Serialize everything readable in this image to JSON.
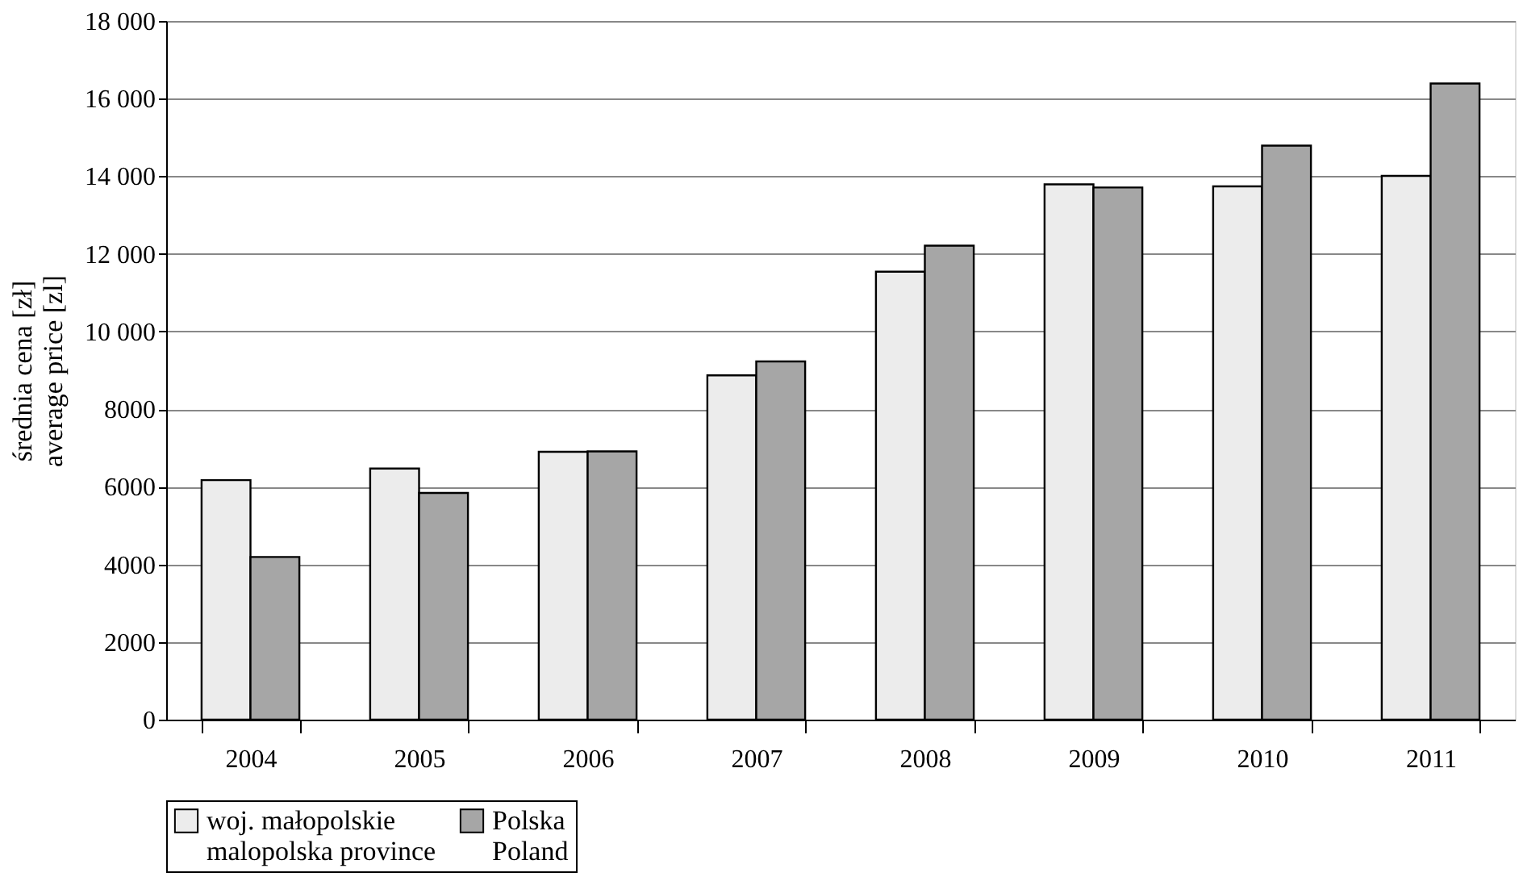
{
  "chart_data": {
    "type": "bar",
    "ylabel": "średnia cena [zł]\naverage price [zl]",
    "categories": [
      "2004",
      "2005",
      "2006",
      "2007",
      "2008",
      "2009",
      "2010",
      "2011"
    ],
    "series": [
      {
        "name": "woj. małopolskie\nmalopolska province",
        "color": "#ececec",
        "values": [
          6170,
          6470,
          6900,
          8870,
          11540,
          13790,
          13740,
          14010
        ]
      },
      {
        "name": "Polska\nPoland",
        "color": "#a6a6a6",
        "values": [
          4190,
          5840,
          6910,
          9230,
          12210,
          13710,
          14790,
          16390
        ]
      }
    ],
    "ylim": [
      0,
      18000
    ],
    "yticks": [
      0,
      2000,
      4000,
      6000,
      8000,
      {
        "value": 10000,
        "label": "10 000"
      },
      {
        "value": 12000,
        "label": "12 000"
      },
      {
        "value": 14000,
        "label": "14 000"
      },
      {
        "value": 16000,
        "label": "16 000"
      },
      {
        "value": 18000,
        "label": "18 000"
      }
    ],
    "grid": "y",
    "legend": "bottom"
  }
}
